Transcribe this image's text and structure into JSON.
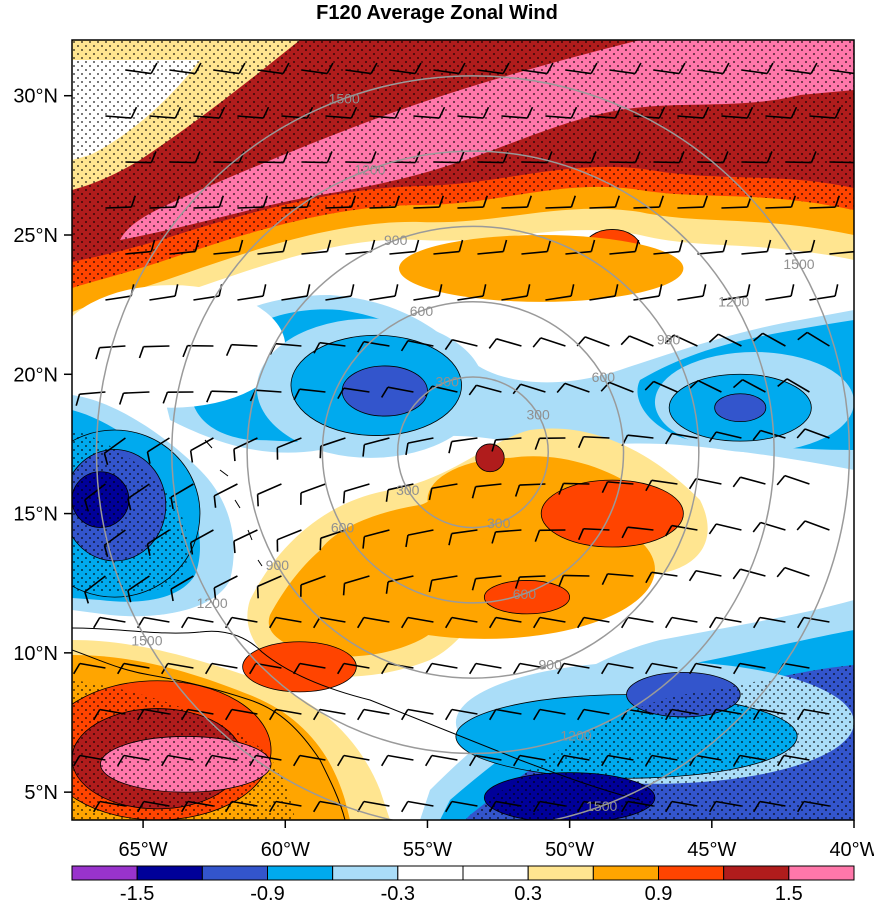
{
  "title": "F120 Average Zonal Wind",
  "map": {
    "lon_range": [
      -67.5,
      -40
    ],
    "lat_range": [
      4,
      32
    ],
    "lon_ticks": [
      {
        "value": -65,
        "label": "65°W"
      },
      {
        "value": -60,
        "label": "60°W"
      },
      {
        "value": -55,
        "label": "55°W"
      },
      {
        "value": -50,
        "label": "50°W"
      },
      {
        "value": -45,
        "label": "45°W"
      },
      {
        "value": -40,
        "label": "40°W"
      }
    ],
    "lat_ticks": [
      {
        "value": 5,
        "label": "5°N"
      },
      {
        "value": 10,
        "label": "10°N"
      },
      {
        "value": 15,
        "label": "15°N"
      },
      {
        "value": 20,
        "label": "20°N"
      },
      {
        "value": 25,
        "label": "25°N"
      },
      {
        "value": 30,
        "label": "30°N"
      }
    ],
    "range_rings": {
      "center": {
        "lon": -53.4,
        "lat": 17.2
      },
      "color": "#9a9a9a",
      "rings": [
        {
          "radius_km": 300,
          "label": "300"
        },
        {
          "radius_km": 600,
          "label": "600"
        },
        {
          "radius_km": 900,
          "label": "900"
        },
        {
          "radius_km": 1200,
          "label": "1200"
        },
        {
          "radius_km": 1500,
          "label": "1500"
        }
      ]
    },
    "field_blobs": [
      {
        "lon": -64,
        "lat": 21,
        "rx": 4,
        "ry": 2.2,
        "value": -0.3
      },
      {
        "lon": -57,
        "lat": 19.5,
        "rx": 4,
        "ry": 2.5,
        "value": -0.6
      },
      {
        "lon": -56.8,
        "lat": 19.6,
        "rx": 3,
        "ry": 1.8,
        "value": -0.9
      },
      {
        "lon": -56.5,
        "lat": 19.4,
        "rx": 1.5,
        "ry": 0.9,
        "value": -1.2
      },
      {
        "lon": -66,
        "lat": 15,
        "rx": 3,
        "ry": 3,
        "value": -0.9
      },
      {
        "lon": -66,
        "lat": 15.3,
        "rx": 1.8,
        "ry": 2,
        "value": -1.2
      },
      {
        "lon": -66.5,
        "lat": 15.5,
        "rx": 1,
        "ry": 1,
        "value": -1.5
      },
      {
        "lon": -43.5,
        "lat": 19,
        "rx": 3.5,
        "ry": 1.8,
        "value": -0.6
      },
      {
        "lon": -44,
        "lat": 18.8,
        "rx": 2.5,
        "ry": 1.2,
        "value": -0.9
      },
      {
        "lon": -44,
        "lat": 18.8,
        "rx": 0.9,
        "ry": 0.5,
        "value": -1.2
      },
      {
        "lon": -50.5,
        "lat": 12.1,
        "rx": 0.8,
        "ry": 0.6,
        "value": -0.6
      },
      {
        "lon": -47,
        "lat": 7.5,
        "rx": 7,
        "ry": 2.2,
        "value": -0.6
      },
      {
        "lon": -48,
        "lat": 7,
        "rx": 6,
        "ry": 1.5,
        "value": -0.9
      },
      {
        "lon": -46,
        "lat": 8.5,
        "rx": 2,
        "ry": 0.8,
        "value": -1.2
      },
      {
        "lon": -50,
        "lat": 4.8,
        "rx": 3,
        "ry": 0.9,
        "value": -1.5
      },
      {
        "lon": -53,
        "lat": 13,
        "rx": 6,
        "ry": 2.5,
        "value": 0.6
      },
      {
        "lon": -52,
        "lat": 15.5,
        "rx": 3,
        "ry": 1.5,
        "value": 0.6
      },
      {
        "lon": -48.5,
        "lat": 15,
        "rx": 2.5,
        "ry": 1.2,
        "value": 0.9
      },
      {
        "lon": -52.8,
        "lat": 17,
        "rx": 0.5,
        "ry": 0.5,
        "value": 1.2
      },
      {
        "lon": -51.5,
        "lat": 12,
        "rx": 1.5,
        "ry": 0.6,
        "value": 0.9
      },
      {
        "lon": -59.5,
        "lat": 9.5,
        "rx": 2,
        "ry": 0.9,
        "value": 0.9
      },
      {
        "lon": -48.5,
        "lat": 24.5,
        "rx": 1,
        "ry": 0.7,
        "value": 0.9
      },
      {
        "lon": -51,
        "lat": 23.8,
        "rx": 5,
        "ry": 1.2,
        "value": 0.6
      },
      {
        "lon": -64.5,
        "lat": 6.5,
        "rx": 4,
        "ry": 2.5,
        "value": 0.9
      },
      {
        "lon": -64.5,
        "lat": 6.2,
        "rx": 3,
        "ry": 1.8,
        "value": 1.2
      },
      {
        "lon": -63.5,
        "lat": 6,
        "rx": 3,
        "ry": 1,
        "value": 1.5
      }
    ]
  },
  "colorbar": {
    "colors": [
      "#9933cc",
      "#000099",
      "#3355cc",
      "#00aaee",
      "#aaddf8",
      "#ffffff",
      "#ffffff",
      "#ffe590",
      "#ffa500",
      "#ff4400",
      "#b01c1c",
      "#ff77aa"
    ],
    "labels": [
      {
        "index": 1,
        "label": "-1.5"
      },
      {
        "index": 3,
        "label": "-0.9"
      },
      {
        "index": 5,
        "label": "-0.3"
      },
      {
        "index": 7,
        "label": "0.3"
      },
      {
        "index": 9,
        "label": "0.9"
      },
      {
        "index": 11,
        "label": "1.5"
      }
    ]
  }
}
